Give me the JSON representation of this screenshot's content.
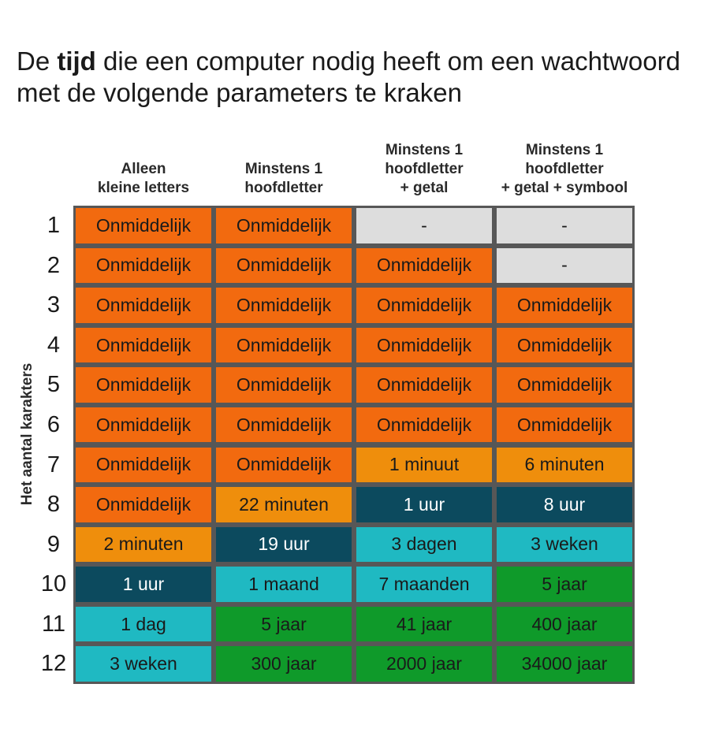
{
  "title": {
    "before": "De ",
    "bold": "tijd",
    "after": " die een computer nodig heeft om een wachtwoord met de volgende parameters te kraken"
  },
  "colors": {
    "onmiddellijk": "#f26a0f",
    "minuten": "#ef8e0c",
    "uren": "#0c4a5e",
    "dagen_weken_maanden": "#1fb9c2",
    "jaren": "#0f9a2a",
    "leeg": "#dddddd",
    "rand": "#575757"
  },
  "chart_data": {
    "type": "table",
    "y_axis_label": "Het aantal karakters",
    "columns": [
      "Alleen kleine letters",
      "Minstens 1 hoofdletter",
      "Minstens 1 hoofdletter + getal",
      "Minstens 1 hoofdletter + getal + symbool"
    ],
    "column_lines": [
      [
        "Alleen",
        "kleine letters"
      ],
      [
        "Minstens 1",
        "hoofdletter"
      ],
      [
        "Minstens 1",
        "hoofdletter",
        "+ getal"
      ],
      [
        "Minstens 1",
        "hoofdletter",
        "+ getal + symbool"
      ]
    ],
    "rows": [
      {
        "label": "1",
        "values": [
          "Onmiddelijk",
          "Onmiddelijk",
          "-",
          "-"
        ],
        "cats": [
          "onmiddellijk",
          "onmiddellijk",
          "leeg",
          "leeg"
        ]
      },
      {
        "label": "2",
        "values": [
          "Onmiddelijk",
          "Onmiddelijk",
          "Onmiddelijk",
          "-"
        ],
        "cats": [
          "onmiddellijk",
          "onmiddellijk",
          "onmiddellijk",
          "leeg"
        ]
      },
      {
        "label": "3",
        "values": [
          "Onmiddelijk",
          "Onmiddelijk",
          "Onmiddelijk",
          "Onmiddelijk"
        ],
        "cats": [
          "onmiddellijk",
          "onmiddellijk",
          "onmiddellijk",
          "onmiddellijk"
        ]
      },
      {
        "label": "4",
        "values": [
          "Onmiddelijk",
          "Onmiddelijk",
          "Onmiddelijk",
          "Onmiddelijk"
        ],
        "cats": [
          "onmiddellijk",
          "onmiddellijk",
          "onmiddellijk",
          "onmiddellijk"
        ]
      },
      {
        "label": "5",
        "values": [
          "Onmiddelijk",
          "Onmiddelijk",
          "Onmiddelijk",
          "Onmiddelijk"
        ],
        "cats": [
          "onmiddellijk",
          "onmiddellijk",
          "onmiddellijk",
          "onmiddellijk"
        ]
      },
      {
        "label": "6",
        "values": [
          "Onmiddelijk",
          "Onmiddelijk",
          "Onmiddelijk",
          "Onmiddelijk"
        ],
        "cats": [
          "onmiddellijk",
          "onmiddellijk",
          "onmiddellijk",
          "onmiddellijk"
        ]
      },
      {
        "label": "7",
        "values": [
          "Onmiddelijk",
          "Onmiddelijk",
          "1 minuut",
          "6 minuten"
        ],
        "cats": [
          "onmiddellijk",
          "onmiddellijk",
          "minuten",
          "minuten"
        ]
      },
      {
        "label": "8",
        "values": [
          "Onmiddelijk",
          "22 minuten",
          "1 uur",
          "8 uur"
        ],
        "cats": [
          "onmiddellijk",
          "minuten",
          "uren",
          "uren"
        ]
      },
      {
        "label": "9",
        "values": [
          "2 minuten",
          "19 uur",
          "3 dagen",
          "3 weken"
        ],
        "cats": [
          "minuten",
          "uren",
          "dagen_weken_maanden",
          "dagen_weken_maanden"
        ]
      },
      {
        "label": "10",
        "values": [
          "1 uur",
          "1 maand",
          "7 maanden",
          "5 jaar"
        ],
        "cats": [
          "uren",
          "dagen_weken_maanden",
          "dagen_weken_maanden",
          "jaren"
        ]
      },
      {
        "label": "11",
        "values": [
          "1 dag",
          "5 jaar",
          "41 jaar",
          "400 jaar"
        ],
        "cats": [
          "dagen_weken_maanden",
          "jaren",
          "jaren",
          "jaren"
        ]
      },
      {
        "label": "12",
        "values": [
          "3 weken",
          "300 jaar",
          "2000 jaar",
          "34000 jaar"
        ],
        "cats": [
          "dagen_weken_maanden",
          "jaren",
          "jaren",
          "jaren"
        ]
      }
    ]
  }
}
